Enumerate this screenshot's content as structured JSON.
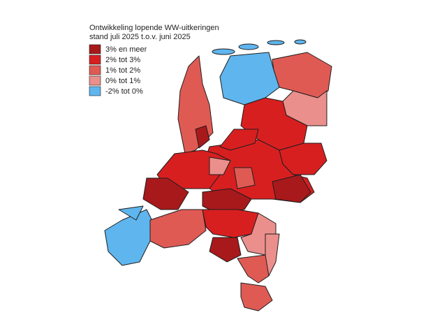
{
  "title": [
    "Ontwikkeling lopende WW-uitkeringen",
    "stand juli 2025 t.o.v. juni 2025"
  ],
  "legend": [
    {
      "label": "3% en meer",
      "color": "#a8191b"
    },
    {
      "label": "2% tot 3%",
      "color": "#d81f20"
    },
    {
      "label": "1% tot 2%",
      "color": "#e05a54"
    },
    {
      "label": "0% tot 1%",
      "color": "#eb8f8c"
    },
    {
      "label": "-2% tot 0%",
      "color": "#5fb5ee"
    }
  ]
}
